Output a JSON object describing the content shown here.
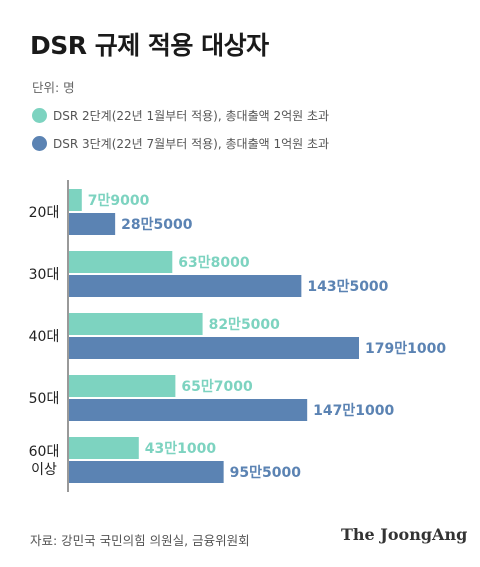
{
  "colors": {
    "series1": "#7dd3c0",
    "series2": "#5b83b3"
  },
  "chart_data": {
    "type": "bar",
    "orientation": "horizontal",
    "title": "DSR 규제 적용 대상자",
    "unit_label": "단위: 명",
    "categories": [
      "20대",
      "30대",
      "40대",
      "50대",
      "60대 이상"
    ],
    "series": [
      {
        "name": "DSR 2단계(22년 1월부터 적용), 총대출액 2억원 초과",
        "values": [
          79000,
          638000,
          825000,
          657000,
          431000
        ],
        "labels": [
          "7만9000",
          "63만8000",
          "82만5000",
          "65만7000",
          "43만1000"
        ]
      },
      {
        "name": "DSR 3단계(22년 7월부터 적용), 총대출액 1억원 초과",
        "values": [
          285000,
          1435000,
          1791000,
          1471000,
          955000
        ],
        "labels": [
          "28만5000",
          "143만5000",
          "179만1000",
          "147만1000",
          "95만5000"
        ]
      }
    ],
    "grid": false,
    "legend_position": "top-left"
  },
  "footer": {
    "source": "자료: 강민국 국민의힘 의원실, 금융위원회",
    "brand": "The JoongAng"
  }
}
